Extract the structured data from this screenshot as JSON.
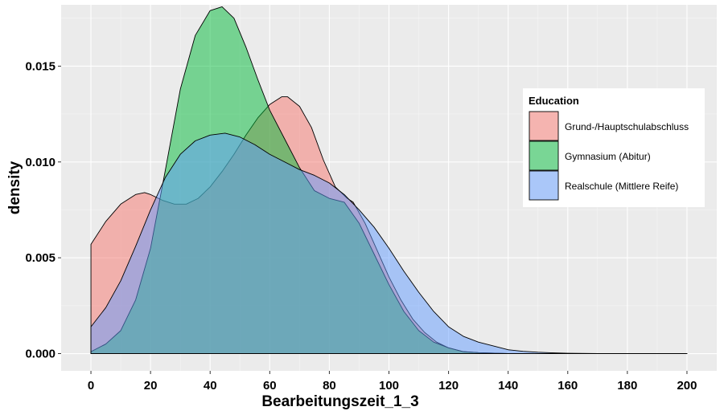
{
  "chart_data": {
    "type": "area",
    "subtype": "density",
    "title": "",
    "xlabel": "Bearbeitungszeit_1_3",
    "ylabel": "density",
    "xlim": [
      -10,
      210
    ],
    "ylim": [
      -0.0009,
      0.0182
    ],
    "x_ticks": [
      0,
      20,
      40,
      60,
      80,
      100,
      120,
      140,
      160,
      180,
      200
    ],
    "x_tick_labels": [
      "0",
      "20",
      "40",
      "60",
      "80",
      "100",
      "120",
      "140",
      "160",
      "180",
      "200"
    ],
    "y_ticks": [
      0.0,
      0.005,
      0.01,
      0.015
    ],
    "y_tick_labels": [
      "0.000",
      "0.005",
      "0.010",
      "0.015"
    ],
    "grid": true,
    "legend": {
      "title": "Education",
      "position": "right",
      "entries": [
        "Grund-/Hauptschulabschluss",
        "Gymnasium (Abitur)",
        "Realschule (Mittlere Reife)"
      ]
    },
    "series": [
      {
        "name": "Grund-/Hauptschulabschluss",
        "color": "#F8766D",
        "x": [
          0,
          5,
          10,
          15,
          18,
          20,
          24,
          28,
          32,
          36,
          40,
          44,
          48,
          52,
          56,
          60,
          64,
          66,
          70,
          74,
          78,
          82,
          86,
          88,
          92,
          96,
          100,
          104,
          108,
          112,
          116,
          120,
          125,
          130,
          140,
          150,
          160,
          170,
          180,
          200
        ],
        "y": [
          0.0057,
          0.0069,
          0.0078,
          0.0083,
          0.0084,
          0.0083,
          0.008,
          0.0078,
          0.0078,
          0.0081,
          0.0087,
          0.0095,
          0.0104,
          0.0114,
          0.0123,
          0.013,
          0.0134,
          0.0134,
          0.0129,
          0.0118,
          0.0101,
          0.0087,
          0.0081,
          0.0079,
          0.0068,
          0.0054,
          0.004,
          0.0028,
          0.0018,
          0.0011,
          0.0006,
          0.0003,
          0.0001,
          5e-05,
          0.0,
          0.0,
          0.0,
          0.0,
          0.0,
          0.0
        ]
      },
      {
        "name": "Gymnasium (Abitur)",
        "color": "#00BA38",
        "x": [
          0,
          5,
          10,
          15,
          20,
          25,
          30,
          35,
          40,
          44,
          48,
          52,
          56,
          60,
          65,
          70,
          75,
          80,
          85,
          90,
          95,
          100,
          105,
          110,
          115,
          120,
          125,
          130,
          140,
          150,
          160,
          170,
          180,
          200
        ],
        "y": [
          0.0001,
          0.0005,
          0.0012,
          0.0028,
          0.0055,
          0.0096,
          0.0138,
          0.0166,
          0.0179,
          0.0181,
          0.0175,
          0.016,
          0.0143,
          0.0127,
          0.0112,
          0.0097,
          0.0085,
          0.0081,
          0.0079,
          0.0068,
          0.0052,
          0.0036,
          0.0022,
          0.0012,
          0.0006,
          0.0003,
          0.0001,
          5e-05,
          0.0,
          0.0,
          0.0,
          0.0,
          0.0,
          0.0
        ]
      },
      {
        "name": "Realschule (Mittlere Reife)",
        "color": "#619CFF",
        "x": [
          0,
          5,
          10,
          15,
          20,
          25,
          30,
          35,
          40,
          45,
          50,
          55,
          60,
          65,
          70,
          75,
          80,
          85,
          90,
          95,
          100,
          105,
          110,
          115,
          120,
          125,
          130,
          135,
          140,
          145,
          150,
          155,
          160,
          170,
          180,
          190,
          200
        ],
        "y": [
          0.0014,
          0.0024,
          0.0038,
          0.0056,
          0.0075,
          0.0092,
          0.0104,
          0.0111,
          0.0114,
          0.0115,
          0.0113,
          0.0109,
          0.0104,
          0.01,
          0.0096,
          0.0093,
          0.0089,
          0.0083,
          0.0075,
          0.0066,
          0.0055,
          0.0043,
          0.0032,
          0.0022,
          0.0014,
          0.0009,
          0.0006,
          0.0004,
          0.0002,
          0.00012,
          7e-05,
          4e-05,
          2e-05,
          0.0,
          0.0,
          0.0,
          0.0
        ]
      }
    ]
  }
}
